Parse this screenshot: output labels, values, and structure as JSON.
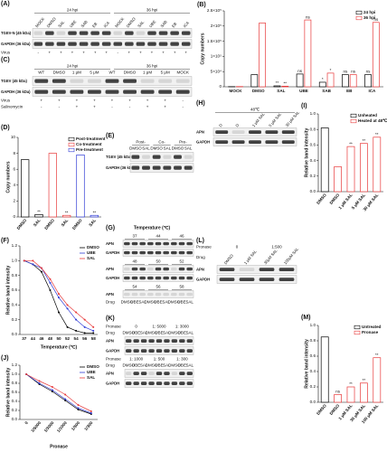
{
  "chart_data": [
    {
      "type": "bar",
      "label": "(B)",
      "ylabel": "Copy numbers",
      "categories": [
        "MOCK",
        "DMSO",
        "SAL",
        "UBE",
        "SAB",
        "EB",
        "ICA"
      ],
      "series": [
        {
          "name": "24 hpi",
          "color": "#000000",
          "values": [
            500,
            40000,
            3000,
            42000,
            15000,
            40000,
            40000
          ],
          "significance": [
            null,
            null,
            "**",
            "ns",
            "*",
            "ns",
            "ns"
          ]
        },
        {
          "name": "36 hpi",
          "color": "#e8393a",
          "values": [
            800,
            210000,
            2000,
            220000,
            45000,
            40000,
            212000
          ],
          "significance": [
            null,
            null,
            "**",
            "ns",
            "*",
            "ns",
            "ns"
          ]
        }
      ],
      "ylim": [
        0,
        250000
      ],
      "yticks": [
        0,
        {
          "value": 50000,
          "label": "5×10⁴"
        },
        {
          "value": 100000,
          "label": "1×10⁵"
        },
        {
          "value": 150000,
          "label": "1.5×10⁵"
        },
        {
          "value": 200000,
          "label": "2×10⁵"
        },
        {
          "value": 250000,
          "label": "2.5×10⁵"
        }
      ],
      "legend": "upper right"
    },
    {
      "type": "bar",
      "label": "(D)",
      "ylabel": "Copy numbers",
      "categories": [
        "DMSO",
        "SAL",
        "DMSO",
        "SAL",
        "DMSO",
        "SAL"
      ],
      "series": [
        {
          "name": "Post-treatment",
          "color": "#000000",
          "values": [
            7.2,
            0.3,
            null,
            null,
            null,
            null
          ],
          "significance": [
            null,
            "**",
            null,
            null,
            null,
            null
          ]
        },
        {
          "name": "Co-treatment",
          "color": "#e8393a",
          "values": [
            null,
            null,
            8.0,
            0.2,
            null,
            null
          ],
          "significance": [
            null,
            null,
            null,
            "**",
            null,
            null
          ]
        },
        {
          "name": "Pre-treatment",
          "color": "#2f3bd6",
          "values": [
            null,
            null,
            null,
            null,
            7.8,
            0.2
          ],
          "significance": [
            null,
            null,
            null,
            null,
            null,
            "**"
          ]
        }
      ],
      "ylim": [
        0,
        10
      ],
      "yticks": [
        0,
        2,
        4,
        6,
        8,
        10
      ],
      "legend": "upper right"
    },
    {
      "type": "line",
      "label": "(F)",
      "ylabel": "Relative band intensity",
      "xlabel": "Temperature (℃)",
      "categories": [
        "37",
        "44",
        "46",
        "48",
        "50",
        "52",
        "54",
        "56",
        "58"
      ],
      "series": [
        {
          "name": "DMSO",
          "color": "#000000",
          "values": [
            1,
            0.95,
            0.85,
            0.6,
            0.3,
            0.1,
            0.05,
            0.02,
            0.02
          ]
        },
        {
          "name": "UBE",
          "color": "#2f3bd6",
          "values": [
            1,
            0.95,
            0.9,
            0.7,
            0.5,
            0.35,
            0.2,
            0.1,
            0.05
          ]
        },
        {
          "name": "SAL",
          "color": "#e8393a",
          "values": [
            1,
            1,
            0.9,
            0.75,
            0.55,
            0.4,
            0.3,
            0.2,
            0.1
          ]
        }
      ],
      "ylim": [
        0,
        1.2
      ],
      "yticks": [
        {
          "value": 0,
          "label": "0.0"
        },
        0.2,
        0.4,
        0.6,
        0.8,
        {
          "value": 1,
          "label": "1.0"
        },
        1.2
      ],
      "legend": "upper right"
    },
    {
      "type": "bar",
      "label": "(I)",
      "ylabel": "Relative band intensity",
      "categories": [
        "DMSO",
        "DMSO",
        "1 μM SAL",
        "5 μM SAL",
        "30 μM SAL"
      ],
      "series": [
        {
          "name": "Unheated",
          "color": "#000000",
          "values": [
            0.82,
            null,
            null,
            null,
            null
          ]
        },
        {
          "name": "Heated at 48℃",
          "color": "#e8393a",
          "values": [
            null,
            0.32,
            0.58,
            0.62,
            0.7
          ],
          "significance": [
            null,
            null,
            "**",
            "**",
            "**"
          ]
        }
      ],
      "ylim": [
        0,
        1
      ],
      "yticks": [
        {
          "value": 0,
          "label": "0.0"
        },
        0.2,
        0.4,
        0.6,
        0.8,
        {
          "value": 1,
          "label": "1.0"
        }
      ],
      "legend": "upper right"
    },
    {
      "type": "line",
      "label": "(J)",
      "ylabel": "Relative band intensity",
      "xlabel": "Pronase",
      "categories": [
        "0",
        "1/5000",
        "1/3000",
        "1/1000",
        "1/500",
        "1/300"
      ],
      "series": [
        {
          "name": "DMSO",
          "color": "#000000",
          "values": [
            1,
            0.78,
            0.62,
            0.42,
            0.22,
            0.12
          ]
        },
        {
          "name": "UBE",
          "color": "#2f3bd6",
          "values": [
            1,
            0.8,
            0.65,
            0.45,
            0.25,
            0.14
          ]
        },
        {
          "name": "SAL",
          "color": "#e8393a",
          "values": [
            1,
            0.85,
            0.72,
            0.55,
            0.32,
            0.18
          ]
        }
      ],
      "ylim": [
        0,
        1.2
      ],
      "yticks": [
        {
          "value": 0,
          "label": "0.0"
        },
        0.2,
        0.4,
        0.6,
        0.8,
        {
          "value": 1,
          "label": "1.0"
        },
        1.2
      ],
      "legend": "upper right"
    },
    {
      "type": "bar",
      "label": "(M)",
      "ylabel": "Relative band intensity",
      "categories": [
        "DMSO",
        "DMSO",
        "1 μM SAL",
        "30 μM SAL",
        "100 μM SAL"
      ],
      "series": [
        {
          "name": "Untreated",
          "color": "#000000",
          "values": [
            0.85,
            null,
            null,
            null,
            null
          ]
        },
        {
          "name": "Pronase",
          "color": "#e8393a",
          "values": [
            null,
            0.1,
            0.2,
            0.25,
            0.58
          ],
          "significance": [
            null,
            "ns",
            "**",
            "**",
            "**"
          ]
        }
      ],
      "ylim": [
        0,
        1
      ],
      "yticks": [
        {
          "value": 0,
          "label": "0.0"
        },
        0.2,
        0.4,
        0.6,
        0.8,
        {
          "value": 1,
          "label": "1.0"
        }
      ],
      "legend": "upper right"
    }
  ],
  "blots": {
    "A": {
      "label": "(A)",
      "header_rows": [
        {
          "cells": [
            "24 hpi",
            "36 hpi"
          ]
        },
        {
          "cells": [
            "MOCK",
            "DMSO",
            "SAL",
            "UBE",
            "SAB",
            "EB",
            "ICA",
            "MOCK",
            "DMSO",
            "SAL",
            "UBE",
            "SAB",
            "EB",
            "ICA"
          ]
        }
      ],
      "rows": [
        "TGEV-N (45 kDa)",
        "GAPDH (36 kDa)"
      ],
      "footer_rows": [
        {
          "name": "Virus",
          "cells": [
            "-",
            "+",
            "+",
            "+",
            "+",
            "+",
            "+",
            "-",
            "+",
            "+",
            "+",
            "+",
            "+",
            "+"
          ]
        }
      ]
    },
    "C": {
      "label": "(C)",
      "header_rows": [
        {
          "cells": [
            "24 hpi",
            "36 hpi"
          ]
        },
        {
          "cells": [
            "WT",
            "DMSO",
            "1 μM",
            "5 μM",
            "WT",
            "DMSO",
            "1 μM",
            "5 μM",
            "MOCK"
          ]
        }
      ],
      "rows": [
        "TGEV (45 kDa)",
        "GAPDH (36 kDa)"
      ],
      "footer_rows": [
        {
          "name": "Virus",
          "cells": [
            "+",
            "+",
            "+",
            "+",
            "+",
            "+",
            "+",
            "+",
            "-"
          ]
        },
        {
          "name": "Salinomycin",
          "cells": [
            "-",
            "-",
            "+",
            "+",
            "-",
            "-",
            "+",
            "+",
            "-"
          ]
        }
      ]
    },
    "E": {
      "label": "(E)",
      "header_rows": [
        {
          "cells": [
            "Post-",
            "Co-",
            "Pre-"
          ]
        },
        {
          "cells": [
            "DMSO",
            "SAL",
            "DMSO",
            "SAL",
            "DMSO",
            "SAL"
          ]
        }
      ],
      "rows": [
        "TGEV (45 kDa)",
        "GAPDH (36 kDa)"
      ]
    },
    "H": {
      "label": "(H)",
      "header_rows": [
        {
          "cells": [
            "48℃"
          ]
        },
        {
          "cells": [
            "D",
            "D",
            "1 μM SAL",
            "5 μM SAL",
            "30 μM SAL"
          ]
        }
      ],
      "rows": [
        "APN",
        "GAPDH"
      ]
    },
    "L": {
      "label": "(L)",
      "header_rows": [
        {
          "name": "Pronase",
          "cells": [
            "0",
            "1:500"
          ]
        },
        {
          "name": "Drug",
          "cells": [
            "DMSO",
            "1 μM SAL",
            "30μM SAL",
            "100μM SAL"
          ]
        }
      ],
      "rows": [
        "APN",
        "GAPDH"
      ]
    }
  },
  "G": {
    "label": "(G)",
    "title": "Temperature (℃)",
    "tiers": [
      {
        "header_rows": [
          {
            "cells": [
              "37",
              "44",
              "46"
            ]
          }
        ],
        "rows": [
          "APN",
          "GAPDH"
        ]
      },
      {
        "header_rows": [
          {
            "cells": [
              "48",
              "50",
              "52"
            ]
          }
        ],
        "rows": [
          "APN",
          "GAPDH"
        ]
      },
      {
        "header_rows": [
          {
            "cells": [
              "54",
              "56",
              "58"
            ]
          }
        ],
        "rows": [
          "APN"
        ],
        "footer_rows": [
          {
            "name": "Drug",
            "cells": [
              "DMSO",
              "UBE",
              "SAL",
              "DMSO",
              "UBE",
              "SAL",
              "DMSO",
              "UBE",
              "SAL"
            ]
          }
        ]
      }
    ]
  },
  "K": {
    "label": "(K)",
    "tiers": [
      {
        "header_rows": [
          {
            "name": "Pronase",
            "cells": [
              "0",
              "1: 5000",
              "1: 3000"
            ]
          },
          {
            "name": "Drug",
            "cells": [
              "DMSO",
              "UBE",
              "SAL",
              "DMSO",
              "UBE",
              "SAL",
              "DMSO",
              "UBE",
              "SAL"
            ]
          }
        ],
        "rows": [
          "APN",
          "GAPDH"
        ]
      },
      {
        "header_rows": [
          {
            "name": "Pronase",
            "cells": [
              "1: 1000",
              "1: 500",
              "1: 300"
            ]
          },
          {
            "name": "Drug",
            "cells": [
              "DMSO",
              "UBE",
              "SAL",
              "DMSO",
              "UBE",
              "SAL",
              "DMSO",
              "UBE",
              "SAL"
            ]
          }
        ],
        "rows": [
          "APN",
          "GAPDH"
        ]
      }
    ]
  }
}
